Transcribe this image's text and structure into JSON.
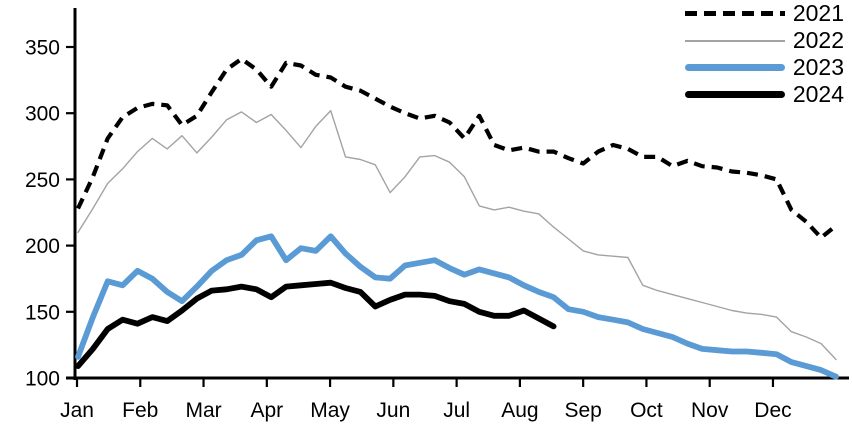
{
  "chart_data": {
    "type": "line",
    "title": "",
    "x_axis": {
      "tick_labels": [
        "Jan",
        "Feb",
        "Mar",
        "Apr",
        "May",
        "Jun",
        "Jul",
        "Aug",
        "Sep",
        "Oct",
        "Nov",
        "Dec"
      ],
      "note": "weekly data points, 52 per year"
    },
    "y_axis": {
      "ticks": [
        100,
        150,
        200,
        250,
        300,
        350
      ],
      "range": [
        100,
        350
      ]
    },
    "grid": "off",
    "legend_position": "top-right",
    "series": [
      {
        "name": "2021",
        "color": "#000000",
        "style": "dashed",
        "values": [
          228,
          252,
          281,
          297,
          304,
          307,
          306,
          291,
          298,
          316,
          333,
          341,
          333,
          320,
          338,
          336,
          329,
          327,
          320,
          317,
          311,
          305,
          300,
          296,
          298,
          293,
          281,
          298,
          276,
          272,
          274,
          271,
          271,
          266,
          262,
          271,
          276,
          273,
          267,
          267,
          260,
          264,
          260,
          259,
          256,
          255,
          253,
          250,
          227,
          218,
          206,
          215
        ]
      },
      {
        "name": "2022",
        "color": "#a3a3a3",
        "style": "thin-solid",
        "values": [
          210,
          228,
          247,
          258,
          271,
          281,
          273,
          283,
          270,
          282,
          295,
          301,
          293,
          299,
          287,
          274,
          290,
          302,
          267,
          265,
          261,
          240,
          252,
          267,
          268,
          263,
          252,
          230,
          227,
          229,
          226,
          224,
          214,
          205,
          196,
          193,
          192,
          191,
          170,
          166,
          163,
          160,
          157,
          154,
          151,
          149,
          148,
          146,
          135,
          131,
          126,
          114
        ]
      },
      {
        "name": "2023",
        "color": "#5B9BD5",
        "style": "thick-solid",
        "values": [
          116,
          146,
          173,
          170,
          181,
          175,
          165,
          158,
          169,
          181,
          189,
          193,
          204,
          207,
          189,
          198,
          196,
          207,
          194,
          184,
          176,
          175,
          185,
          187,
          189,
          183,
          178,
          182,
          179,
          176,
          170,
          165,
          161,
          152,
          150,
          146,
          144,
          142,
          137,
          134,
          131,
          126,
          122,
          121,
          120,
          120,
          119,
          118,
          112,
          109,
          106,
          101
        ]
      },
      {
        "name": "2024",
        "color": "#000000",
        "style": "thick-solid",
        "values": [
          109,
          122,
          137,
          144,
          141,
          146,
          143,
          151,
          160,
          166,
          167,
          169,
          167,
          161,
          169,
          170,
          171,
          172,
          168,
          165,
          154,
          159,
          163,
          163,
          162,
          158,
          156,
          150,
          147,
          147,
          151,
          145,
          139
        ]
      }
    ]
  }
}
